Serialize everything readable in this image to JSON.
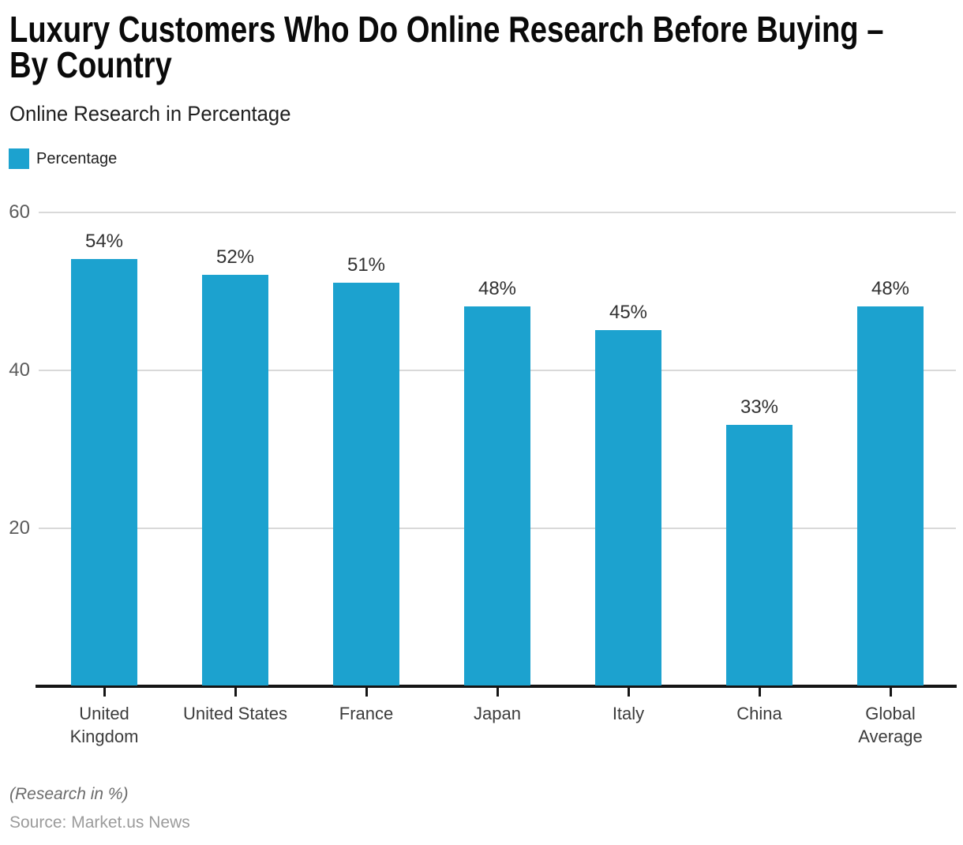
{
  "header": {
    "title": "Luxury Customers Who Do Online Research Before Buying – By Country",
    "subtitle": "Online Research in Percentage"
  },
  "legend": {
    "items": [
      {
        "label": "Percentage",
        "color": "#1CA2CF"
      }
    ]
  },
  "chart_data": {
    "type": "bar",
    "title": "Luxury Customers Who Do Online Research Before Buying – By Country",
    "subtitle": "Online Research in Percentage",
    "categories": [
      "United Kingdom",
      "United States",
      "France",
      "Japan",
      "Italy",
      "China",
      "Global Average"
    ],
    "series": [
      {
        "name": "Percentage",
        "values": [
          54,
          52,
          51,
          48,
          45,
          33,
          48
        ]
      }
    ],
    "value_labels": [
      "54%",
      "52%",
      "51%",
      "48%",
      "45%",
      "33%",
      "48%"
    ],
    "xlabel": "",
    "ylabel": "",
    "ylim": [
      0,
      60
    ],
    "yticks": [
      20,
      40,
      60
    ],
    "grid": true,
    "legend_position": "top-left",
    "bar_color": "#1CA2CF",
    "gridline_color": "#d9d9d9",
    "axis_color": "#151515"
  },
  "footer": {
    "note": "(Research in %)",
    "source": "Source: Market.us News"
  }
}
